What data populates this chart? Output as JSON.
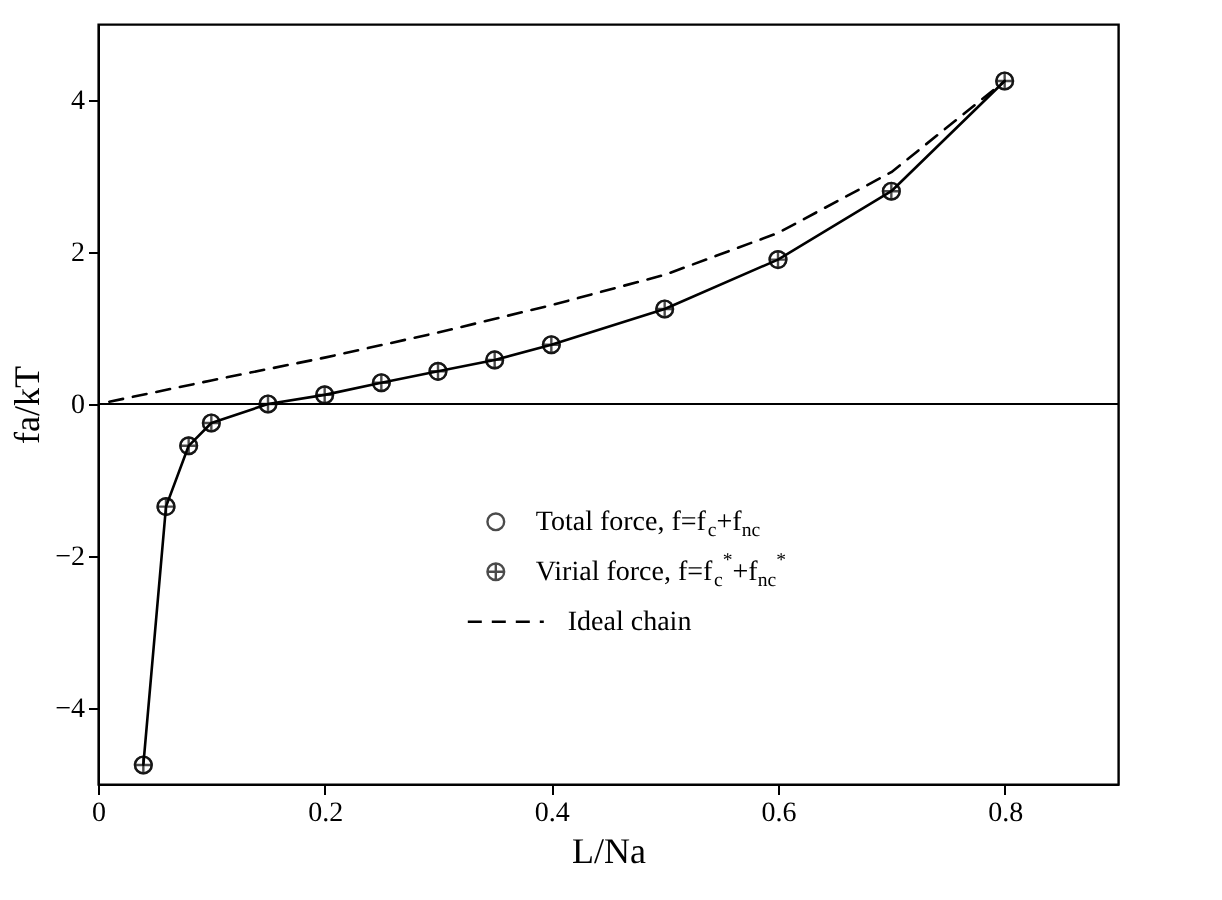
{
  "chart_data": {
    "type": "scatter",
    "xlabel": "L/Na",
    "ylabel": "fa/kT",
    "xlim": [
      0,
      0.9
    ],
    "ylim": [
      -5,
      5
    ],
    "xticks": [
      0,
      0.2,
      0.4,
      0.6,
      0.8
    ],
    "yticks": [
      -4,
      -2,
      0,
      2,
      4
    ],
    "x": [
      0.04,
      0.06,
      0.08,
      0.1,
      0.15,
      0.2,
      0.25,
      0.3,
      0.35,
      0.4,
      0.5,
      0.6,
      0.7,
      0.8
    ],
    "series": [
      {
        "type": "line",
        "color": "#000000",
        "marker": "none",
        "line_style": "solid",
        "values": [
          -4.75,
          -1.35,
          -0.55,
          -0.25,
          0.0,
          0.12,
          0.28,
          0.43,
          0.58,
          0.78,
          1.25,
          1.9,
          2.8,
          4.25
        ]
      },
      {
        "name": "Total force, f=f$_{c}$+f$_{nc}$",
        "color": "#000000",
        "marker": "circle",
        "values": [
          -4.75,
          -1.35,
          -0.55,
          -0.25,
          0.0,
          0.12,
          0.28,
          0.43,
          0.58,
          0.78,
          1.25,
          1.9,
          2.8,
          4.25
        ]
      },
      {
        "name": "Virial force, f=f$_{c}$$^{*}$+f$_{nc}$$^{*}$",
        "color": "#000000",
        "marker": "cross",
        "values": [
          -4.75,
          -1.35,
          -0.55,
          -0.25,
          0.0,
          0.12,
          0.28,
          0.43,
          0.58,
          0.78,
          1.25,
          1.9,
          2.8,
          4.25
        ]
      },
      {
        "name": "Ideal chain",
        "type": "line",
        "color": "#000000",
        "marker": "none",
        "line_style": "dashed",
        "x": [
          0.01,
          0.1,
          0.2,
          0.3,
          0.4,
          0.5,
          0.6,
          0.7,
          0.8
        ],
        "values": [
          0.03,
          0.31,
          0.61,
          0.94,
          1.3,
          1.7,
          2.25,
          3.05,
          4.25
        ]
      }
    ],
    "ref_lines": [
      {
        "axis": "y",
        "value": 0,
        "label": null
      }
    ],
    "legend": "bottom right",
    "grid": false
  }
}
